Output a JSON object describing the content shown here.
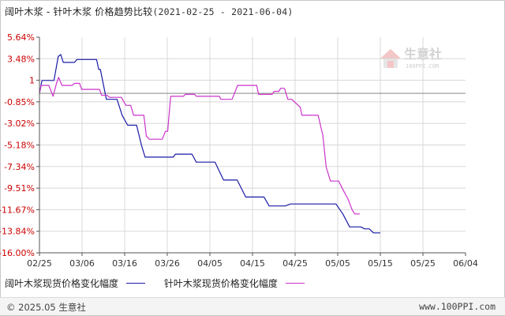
{
  "title": "阔叶木浆 - 针叶木浆 价格趋势比较",
  "date_range": "(2021-02-25 - 2021-06-04)",
  "watermark": {
    "brand": "生意社",
    "url": "100PPI.COM"
  },
  "footer": {
    "copyright": "© 2025.05 生意社",
    "url": "www.100PPI.com"
  },
  "colors": {
    "series1": "#1a1aa6",
    "series2": "#cc33cc",
    "grid": "#d8d8d8",
    "axis": "#555555",
    "tick_label": "#cc0000",
    "x_label": "#333333"
  },
  "chart_data": {
    "type": "line",
    "title": "阔叶木浆 - 针叶木浆 价格趋势比较",
    "xlabel": "",
    "ylabel": "",
    "x_ticks": [
      "02/25",
      "03/06",
      "03/16",
      "03/26",
      "04/05",
      "04/15",
      "04/25",
      "05/05",
      "05/15",
      "05/25",
      "06/04"
    ],
    "y_ticks": [
      "5.64%",
      "3.48%",
      "1",
      "-0.85%",
      "-3.02%",
      "-5.18%",
      "-7.34%",
      "-9.51%",
      "-11.67%",
      "-13.84%",
      "-16.00%"
    ],
    "ylim": [
      -16.0,
      5.64
    ],
    "grid": true,
    "legend_position": "bottom-left",
    "series": [
      {
        "name": "阔叶木浆现货价格变化幅度",
        "values": [
          [
            0,
            0
          ],
          [
            0.6,
            1.3
          ],
          [
            3.4,
            1.3
          ],
          [
            4.4,
            3.7
          ],
          [
            5.0,
            3.9
          ],
          [
            5.6,
            3.1
          ],
          [
            8.2,
            3.1
          ],
          [
            8.8,
            3.4
          ],
          [
            13.4,
            3.4
          ],
          [
            13.9,
            2.4
          ],
          [
            14.3,
            2.4
          ],
          [
            15.7,
            -0.6
          ],
          [
            18.2,
            -0.6
          ],
          [
            19.4,
            -2.2
          ],
          [
            20.7,
            -3.2
          ],
          [
            22.8,
            -3.2
          ],
          [
            24.0,
            -5.3
          ],
          [
            24.8,
            -6.4
          ],
          [
            31.4,
            -6.4
          ],
          [
            31.9,
            -6.1
          ],
          [
            35.8,
            -6.1
          ],
          [
            36.8,
            -6.9
          ],
          [
            41.2,
            -6.9
          ],
          [
            43.2,
            -8.7
          ],
          [
            46.4,
            -8.7
          ],
          [
            48.4,
            -10.4
          ],
          [
            52.7,
            -10.4
          ],
          [
            53.9,
            -11.3
          ],
          [
            57.7,
            -11.3
          ],
          [
            58.9,
            -11.1
          ],
          [
            69.6,
            -11.1
          ],
          [
            71.2,
            -12.1
          ],
          [
            72.8,
            -13.4
          ],
          [
            75.4,
            -13.4
          ],
          [
            76.3,
            -13.6
          ],
          [
            77.4,
            -13.6
          ],
          [
            78.4,
            -14.0
          ],
          [
            80.0,
            -14.0
          ]
        ]
      },
      {
        "name": "针叶木浆现货价格变化幅度",
        "values": [
          [
            0,
            0
          ],
          [
            0.4,
            0.8
          ],
          [
            2.2,
            0.8
          ],
          [
            3.2,
            -0.3
          ],
          [
            4.0,
            1.0
          ],
          [
            4.5,
            1.6
          ],
          [
            5.3,
            0.8
          ],
          [
            7.7,
            0.8
          ],
          [
            8.2,
            1.0
          ],
          [
            9.4,
            1.0
          ],
          [
            9.9,
            0.4
          ],
          [
            14.1,
            0.4
          ],
          [
            14.6,
            -0.2
          ],
          [
            15.9,
            -0.2
          ],
          [
            16.4,
            -0.4
          ],
          [
            19.2,
            -0.4
          ],
          [
            20.3,
            -1.2
          ],
          [
            21.4,
            -1.2
          ],
          [
            22.1,
            -2.2
          ],
          [
            24.5,
            -2.2
          ],
          [
            25.1,
            -4.3
          ],
          [
            25.8,
            -4.6
          ],
          [
            28.8,
            -4.6
          ],
          [
            29.6,
            -3.8
          ],
          [
            30.1,
            -3.8
          ],
          [
            30.8,
            -0.3
          ],
          [
            33.8,
            -0.3
          ],
          [
            34.2,
            -0.1
          ],
          [
            36.4,
            -0.1
          ],
          [
            36.8,
            -0.3
          ],
          [
            42.2,
            -0.3
          ],
          [
            42.6,
            -0.6
          ],
          [
            45.2,
            -0.6
          ],
          [
            46.5,
            0.8
          ],
          [
            51.0,
            0.8
          ],
          [
            51.4,
            -0.1
          ],
          [
            54.6,
            -0.1
          ],
          [
            55.1,
            0.2
          ],
          [
            56.2,
            0.2
          ],
          [
            56.6,
            0.5
          ],
          [
            57.5,
            0.5
          ],
          [
            58.3,
            -0.6
          ],
          [
            59.2,
            -0.6
          ],
          [
            61.2,
            -1.4
          ],
          [
            61.6,
            -2.2
          ],
          [
            65.4,
            -2.2
          ],
          [
            66.5,
            -4.2
          ],
          [
            67.3,
            -7.4
          ],
          [
            68.3,
            -8.8
          ],
          [
            70.2,
            -8.8
          ],
          [
            71.4,
            -9.8
          ],
          [
            72.4,
            -10.6
          ],
          [
            73.4,
            -11.7
          ],
          [
            74.0,
            -12.1
          ],
          [
            75.2,
            -12.1
          ]
        ]
      }
    ]
  }
}
